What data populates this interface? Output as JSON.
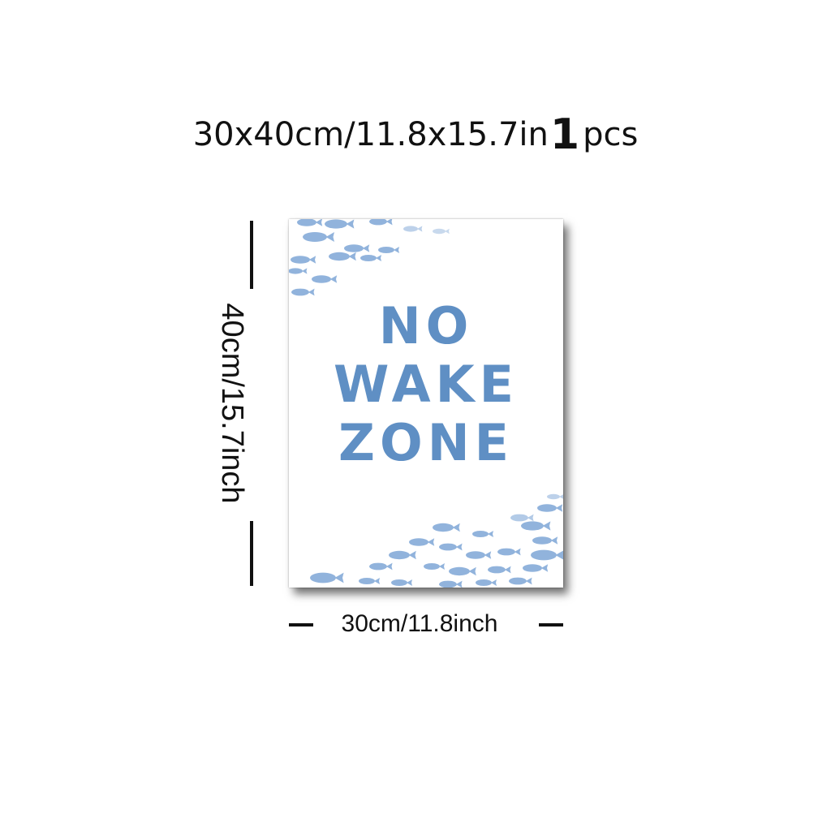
{
  "headline": {
    "size_text": "30x40cm/11.8x15.7in",
    "quantity": "1",
    "unit": "pcs"
  },
  "poster": {
    "lines": [
      "NO",
      "WAKE",
      "ZONE"
    ],
    "text_color": "#5f8fc4",
    "illustration": "watercolor-fish-school"
  },
  "dimensions": {
    "height_label": "40cm/15.7inch",
    "width_label": "30cm/11.8inch"
  }
}
